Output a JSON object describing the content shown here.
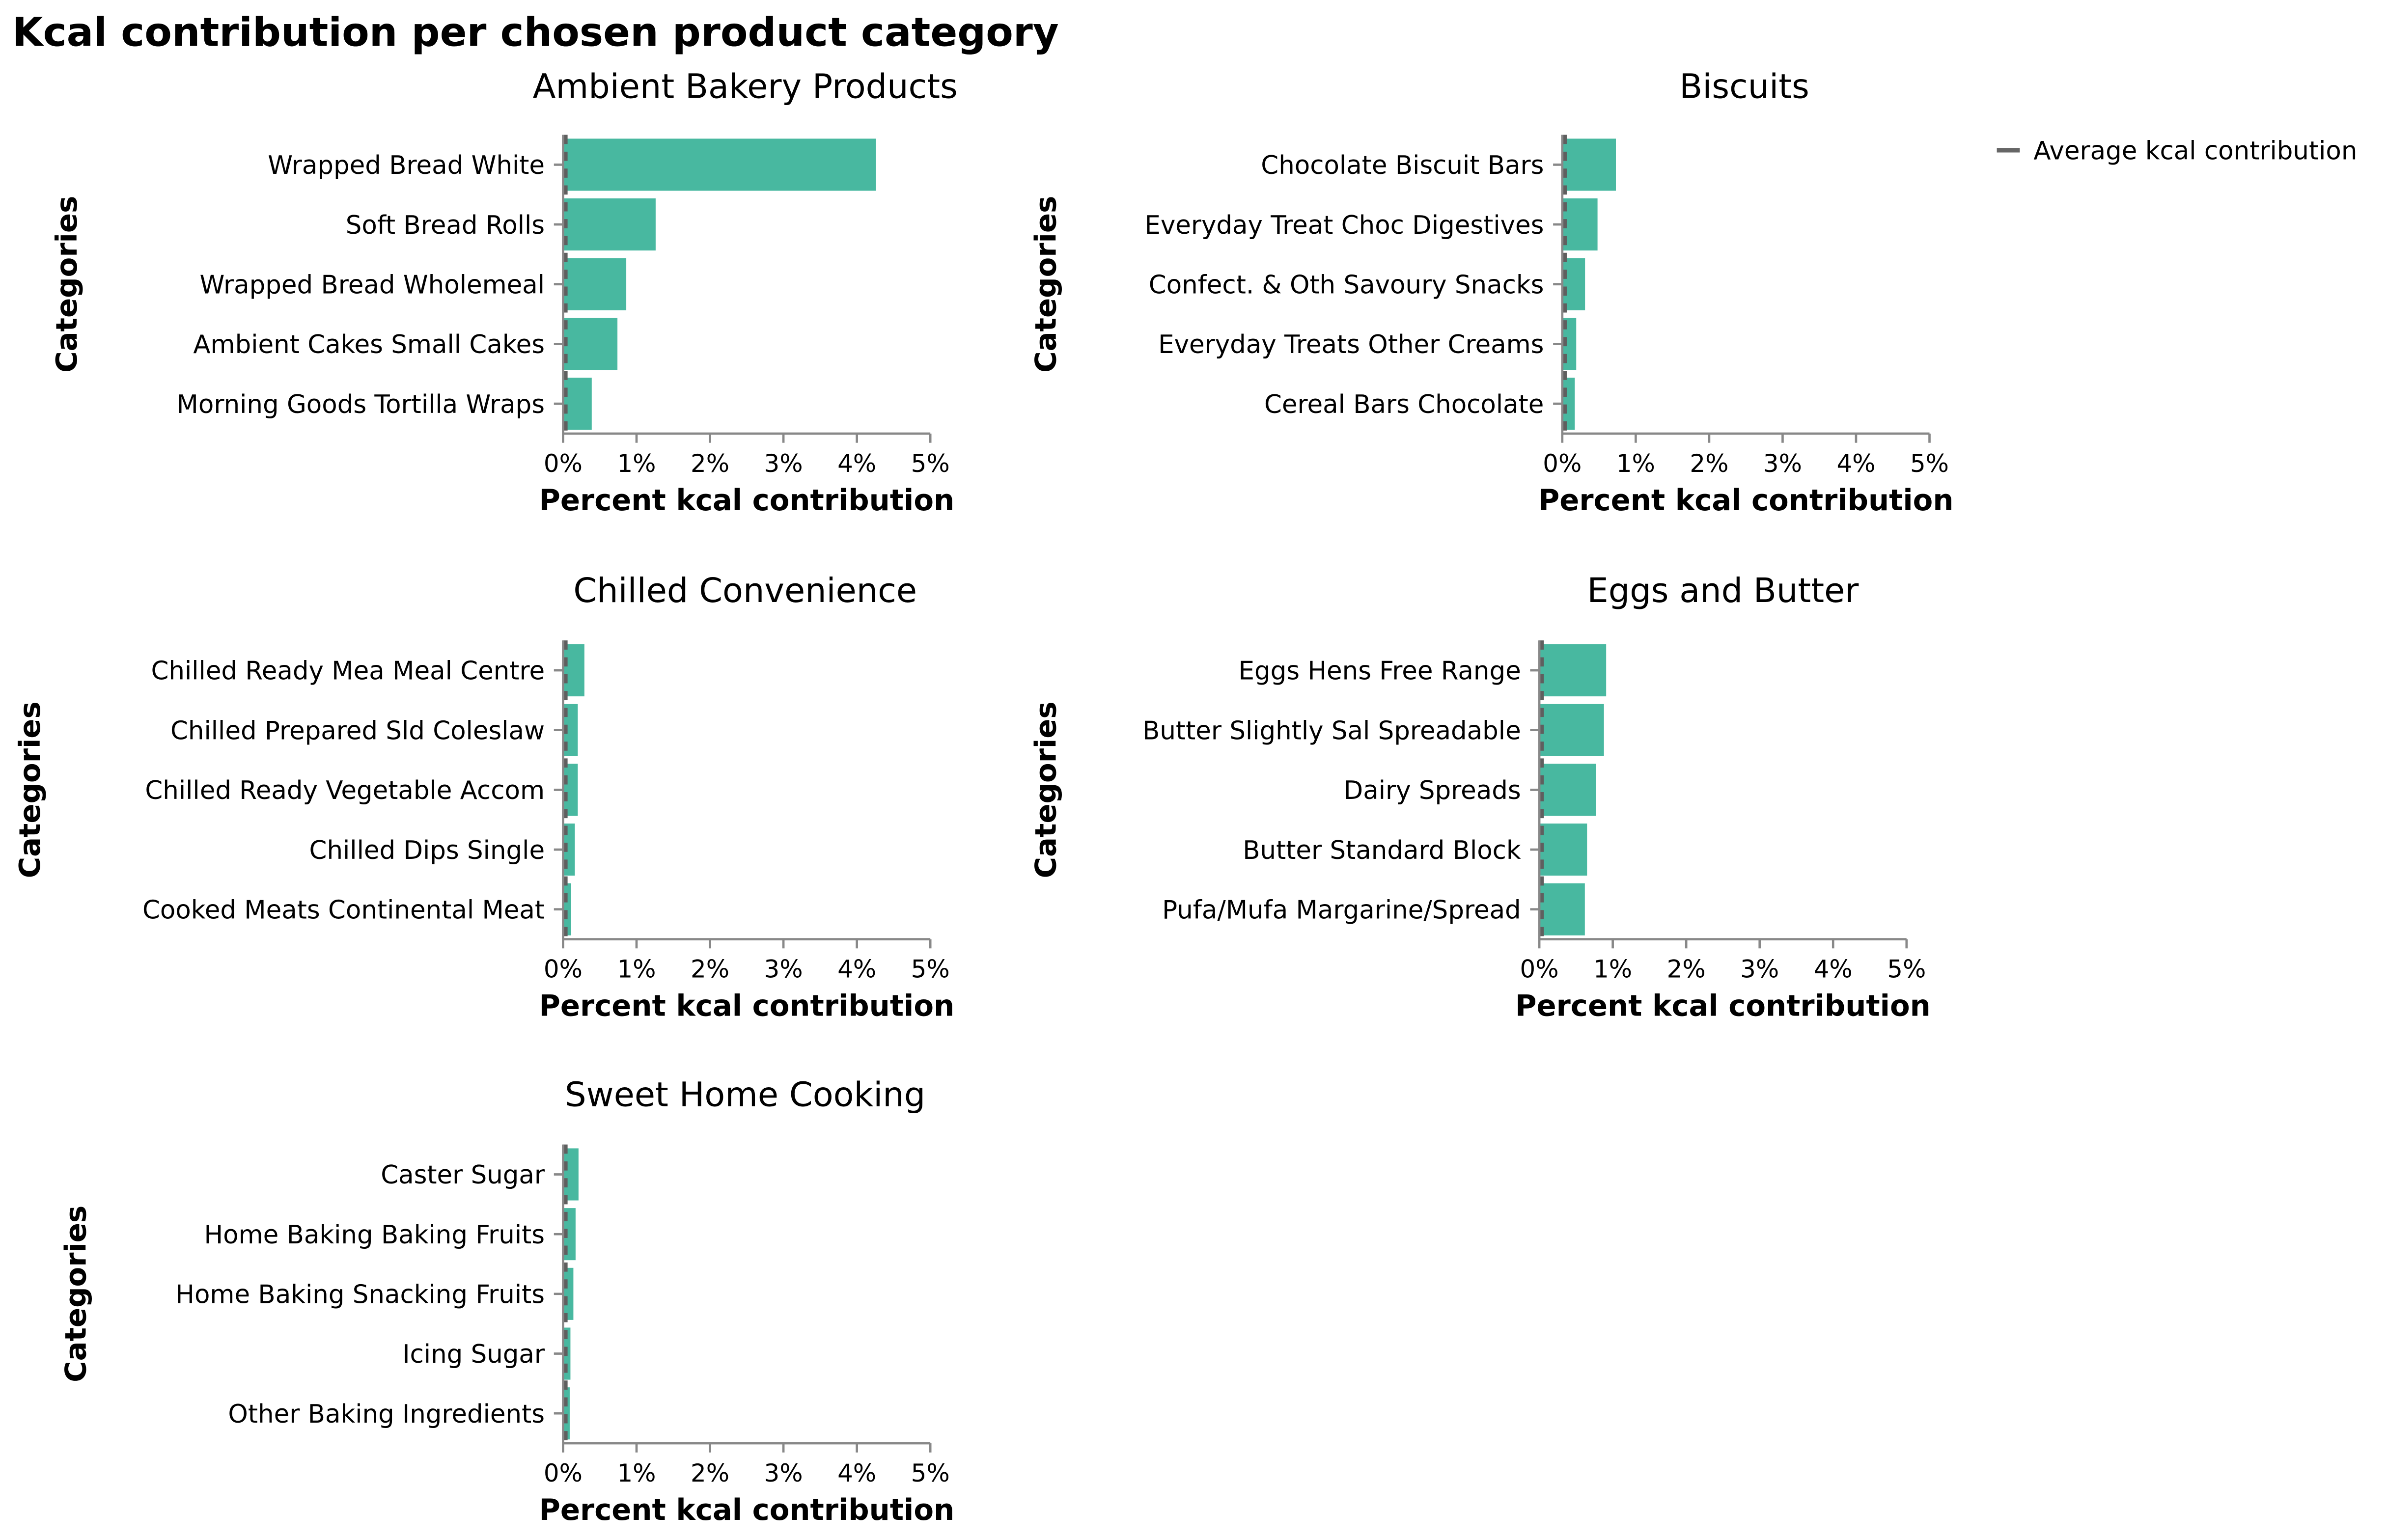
{
  "title": "Kcal contribution per chosen product category",
  "legend": {
    "label": "Average kcal contribution",
    "color": "#666666"
  },
  "colors": {
    "bar": "#48b8a0",
    "avg_line": "#5f5f5f"
  },
  "chart_data": [
    {
      "type": "bar",
      "orientation": "horizontal",
      "title": "Ambient Bakery Products",
      "xlabel": "Percent kcal contribution",
      "ylabel": "Categories",
      "categories": [
        "Wrapped Bread White",
        "Soft Bread Rolls",
        "Wrapped Bread Wholemeal",
        "Ambient Cakes Small Cakes",
        "Morning Goods Tortilla Wraps"
      ],
      "values": [
        4.26,
        1.26,
        0.86,
        0.74,
        0.39
      ],
      "average": 0.03,
      "xticks": [
        "0%",
        "1%",
        "2%",
        "3%",
        "4%",
        "5%"
      ],
      "xlim": [
        0,
        5
      ]
    },
    {
      "type": "bar",
      "orientation": "horizontal",
      "title": "Biscuits",
      "xlabel": "Percent kcal contribution",
      "ylabel": "Categories",
      "categories": [
        "Chocolate Biscuit Bars",
        "Everyday Treat Choc Digestives",
        "Confect. & Oth Savoury Snacks",
        "Everyday Treats Other Creams",
        "Cereal Bars Chocolate"
      ],
      "values": [
        0.73,
        0.48,
        0.31,
        0.19,
        0.17
      ],
      "average": 0.03,
      "xticks": [
        "0%",
        "1%",
        "2%",
        "3%",
        "4%",
        "5%"
      ],
      "xlim": [
        0,
        5
      ]
    },
    {
      "type": "bar",
      "orientation": "horizontal",
      "title": "Chilled Convenience",
      "xlabel": "Percent kcal contribution",
      "ylabel": "Categories",
      "categories": [
        "Chilled Ready Mea Meal Centre",
        "Chilled Prepared Sld Coleslaw",
        "Chilled Ready Vegetable Accom",
        "Chilled Dips Single",
        "Cooked Meats Continental Meat"
      ],
      "values": [
        0.29,
        0.2,
        0.2,
        0.16,
        0.11
      ],
      "average": 0.03,
      "xticks": [
        "0%",
        "1%",
        "2%",
        "3%",
        "4%",
        "5%"
      ],
      "xlim": [
        0,
        5
      ]
    },
    {
      "type": "bar",
      "orientation": "horizontal",
      "title": "Eggs and Butter",
      "xlabel": "Percent kcal contribution",
      "ylabel": "Categories",
      "categories": [
        "Eggs Hens Free Range",
        "Butter Slightly Sal Spreadable",
        "Dairy Spreads",
        "Butter Standard Block",
        "Pufa/Mufa Margarine/Spread"
      ],
      "values": [
        0.91,
        0.88,
        0.77,
        0.65,
        0.62
      ],
      "average": 0.03,
      "xticks": [
        "0%",
        "1%",
        "2%",
        "3%",
        "4%",
        "5%"
      ],
      "xlim": [
        0,
        5
      ]
    },
    {
      "type": "bar",
      "orientation": "horizontal",
      "title": "Sweet Home Cooking",
      "xlabel": "Percent kcal contribution",
      "ylabel": "Categories",
      "categories": [
        "Caster Sugar",
        "Home Baking Baking Fruits",
        "Home Baking Snacking Fruits",
        "Icing Sugar",
        "Other Baking Ingredients"
      ],
      "values": [
        0.21,
        0.17,
        0.14,
        0.1,
        0.09
      ],
      "average": 0.03,
      "xticks": [
        "0%",
        "1%",
        "2%",
        "3%",
        "4%",
        "5%"
      ],
      "xlim": [
        0,
        5
      ]
    }
  ]
}
